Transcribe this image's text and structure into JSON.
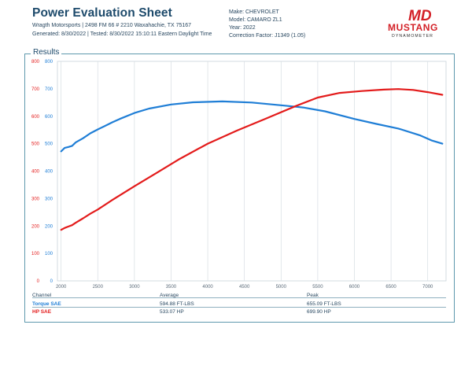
{
  "header": {
    "title": "Power Evaluation Sheet",
    "shop": "Wragth Motorsports | 2498 FM 66 # 2210 Waxahachie, TX 75167",
    "dates": "Generated: 8/30/2022 | Tested: 8/30/2022 15:10:11 Eastern Daylight Time"
  },
  "vehicle": {
    "make": "Make: CHEVROLET",
    "model": "Model: CAMARO ZL1",
    "year": "Year: 2022",
    "correction": "Correction Factor: J1349 (1.05)"
  },
  "logo": {
    "top": "MD",
    "word": "MUSTANG",
    "sub": "DYNAMOMETER",
    "color": "#d32027",
    "dark": "#2c2c2c"
  },
  "section_label": "Results",
  "table": {
    "headers": [
      "Channel",
      "Average",
      "Peak"
    ],
    "rows": [
      {
        "channel": "Torque SAE",
        "average": "594.88 FT-LBS",
        "peak": "655.09 FT-LBS",
        "color": "#1f7ed6"
      },
      {
        "channel": "HP SAE",
        "average": "533.07 HP",
        "peak": "699.90 HP",
        "color": "#e31b1b"
      }
    ]
  },
  "chart_data": {
    "type": "line",
    "x_ticks": [
      2000,
      2500,
      3000,
      3500,
      4000,
      4500,
      5000,
      5500,
      6000,
      6500,
      7000
    ],
    "xlim": [
      1950,
      7250
    ],
    "y_left": {
      "ticks": [
        0,
        100,
        200,
        300,
        400,
        500,
        600,
        700,
        800
      ],
      "ylim": [
        0,
        800
      ],
      "color": "#e31b1b"
    },
    "y_right": {
      "ticks": [
        0,
        100,
        200,
        300,
        400,
        500,
        600,
        700,
        800
      ],
      "ylim": [
        0,
        800
      ],
      "color": "#1f7ed6"
    },
    "grid": "vertical",
    "series": [
      {
        "name": "Torque SAE",
        "axis": "right",
        "color": "#1f7ed6",
        "x": [
          2000,
          2050,
          2100,
          2150,
          2200,
          2300,
          2400,
          2500,
          2600,
          2700,
          2800,
          3000,
          3200,
          3500,
          3800,
          4200,
          4600,
          5000,
          5300,
          5600,
          6000,
          6300,
          6600,
          6900,
          7050,
          7200
        ],
        "y": [
          472,
          485,
          488,
          492,
          505,
          520,
          538,
          552,
          565,
          578,
          590,
          612,
          628,
          643,
          651,
          654,
          650,
          640,
          632,
          618,
          590,
          572,
          555,
          530,
          512,
          500
        ]
      },
      {
        "name": "HP SAE",
        "axis": "left",
        "color": "#e31b1b",
        "x": [
          2000,
          2050,
          2100,
          2150,
          2200,
          2300,
          2400,
          2500,
          2700,
          3000,
          3300,
          3600,
          4000,
          4400,
          4800,
          5200,
          5500,
          5800,
          6100,
          6400,
          6600,
          6800,
          7000,
          7200
        ],
        "y": [
          186,
          193,
          198,
          203,
          212,
          228,
          245,
          260,
          295,
          345,
          393,
          442,
          500,
          548,
          592,
          637,
          668,
          685,
          692,
          697,
          699,
          696,
          688,
          678
        ]
      }
    ]
  }
}
